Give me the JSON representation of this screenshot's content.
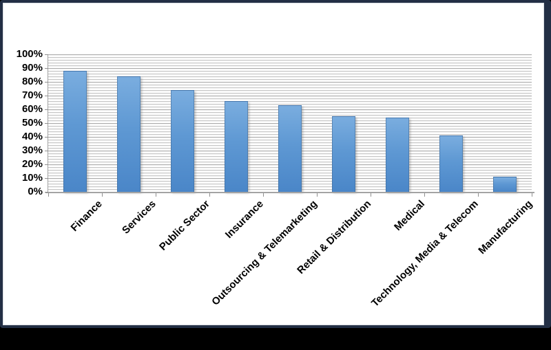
{
  "chart_data": {
    "type": "bar",
    "title": "",
    "categories": [
      "Finance",
      "Services",
      "Public Sector",
      "Insurance",
      "Outsourcing & Telemarketing",
      "Retail & Distribution",
      "Medical",
      "Technology, Media & Telecom",
      "Manufacturing"
    ],
    "values": [
      88,
      84,
      74,
      66,
      63,
      55,
      54,
      41,
      11
    ],
    "value_unit": "%",
    "y_ticks": [
      "0%",
      "10%",
      "20%",
      "30%",
      "40%",
      "50%",
      "60%",
      "70%",
      "80%",
      "90%",
      "100%"
    ],
    "ylim": [
      0,
      100
    ],
    "y_major_step": 10,
    "y_minor_step": 2,
    "grid": "horizontal minor gridlines visible",
    "legend_position": "none",
    "xlabel": "",
    "ylabel": "",
    "x_label_rotation_deg": 45,
    "colors": {
      "bar_top": "#7aaddf",
      "bar_bottom": "#4a86c8",
      "bar_edge": "#3e6896",
      "gridline_minor": "#c6c6c6",
      "gridline_major": "#ababab",
      "axis": "#a3a3a3",
      "frame_border": "#232f45",
      "plot_background": "#ffffff",
      "outer_background": "#000000",
      "label_text": "#000000"
    }
  }
}
